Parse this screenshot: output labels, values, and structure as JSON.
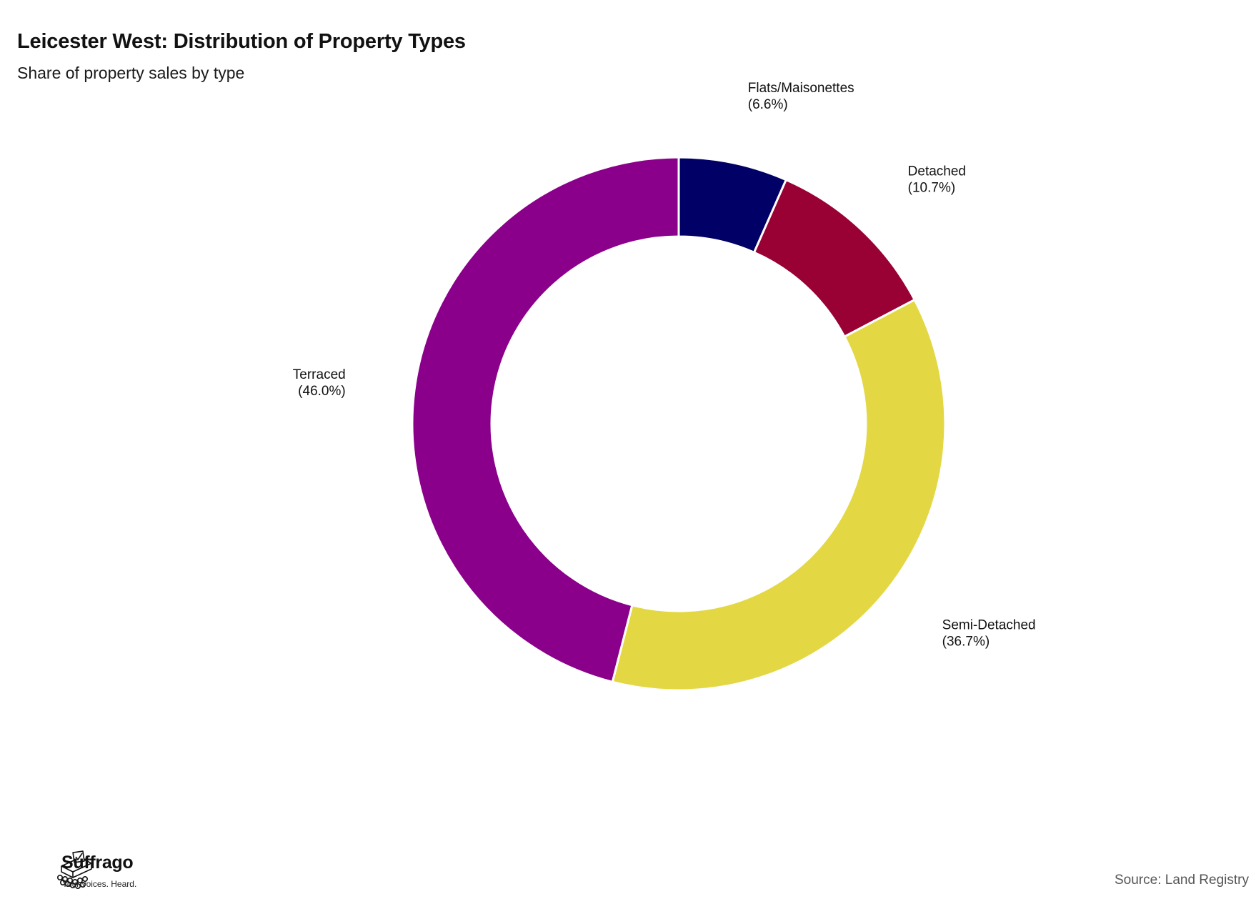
{
  "header": {
    "title": "Leicester West: Distribution of Property Types",
    "subtitle": "Share of property sales by type"
  },
  "chart_data": {
    "type": "pie",
    "variant": "donut",
    "title": "Leicester West: Distribution of Property Types",
    "subtitle": "Share of property sales by type",
    "unit": "%",
    "categories": [
      "Flats/Maisonettes",
      "Detached",
      "Semi-Detached",
      "Terraced"
    ],
    "values": [
      6.6,
      10.7,
      36.7,
      46.0
    ],
    "value_labels": [
      "(6.6%)",
      "(10.7%)",
      "(36.7%)",
      "(46.0%)"
    ],
    "colors": [
      "#000066",
      "#990033",
      "#E3D844",
      "#8B008B"
    ],
    "start_angle": "12 o'clock",
    "direction": "clockwise",
    "legend": "none (direct labels)"
  },
  "footer": {
    "brand_name": "Suffrago",
    "brand_tagline": "Your voices. Heard.",
    "logo_icon": "ballot-box-icon",
    "source": "Source: Land Registry"
  }
}
